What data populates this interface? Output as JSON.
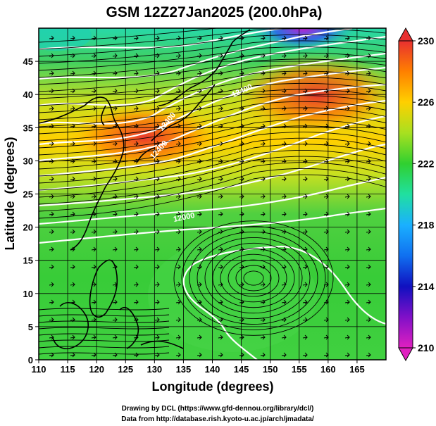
{
  "chart_data": {
    "type": "heatmap",
    "title": "GSM 12Z27Jan2025 (200.0hPa)",
    "xlabel": "Longitude (degrees)",
    "ylabel": "Latitude  (degrees)",
    "xlim": [
      110,
      170
    ],
    "ylim": [
      0,
      50
    ],
    "x_ticks": [
      "110",
      "115",
      "120",
      "125",
      "130",
      "135",
      "140",
      "145",
      "150",
      "155",
      "160",
      "165"
    ],
    "y_ticks": [
      "0",
      "5",
      "10",
      "15",
      "20",
      "25",
      "30",
      "35",
      "40",
      "45"
    ],
    "colorbar": {
      "min": 210,
      "max": 230,
      "ticks": [
        "210",
        "214",
        "218",
        "222",
        "226",
        "230"
      ],
      "colors": [
        "#e020c0",
        "#1010c0",
        "#1aa0ff",
        "#20e0a0",
        "#30d030",
        "#a8e020",
        "#ffd000",
        "#ff8000",
        "#e83030"
      ]
    },
    "contour_labels": [
      "12000",
      "12400",
      "12400",
      "12400"
    ],
    "credits": [
      "Drawing by DCL (https://www.gfd-dennou.org/library/dcl/)",
      "Data from http://database.rish.kyoto-u.ac.jp/arch/jmadata/"
    ]
  }
}
